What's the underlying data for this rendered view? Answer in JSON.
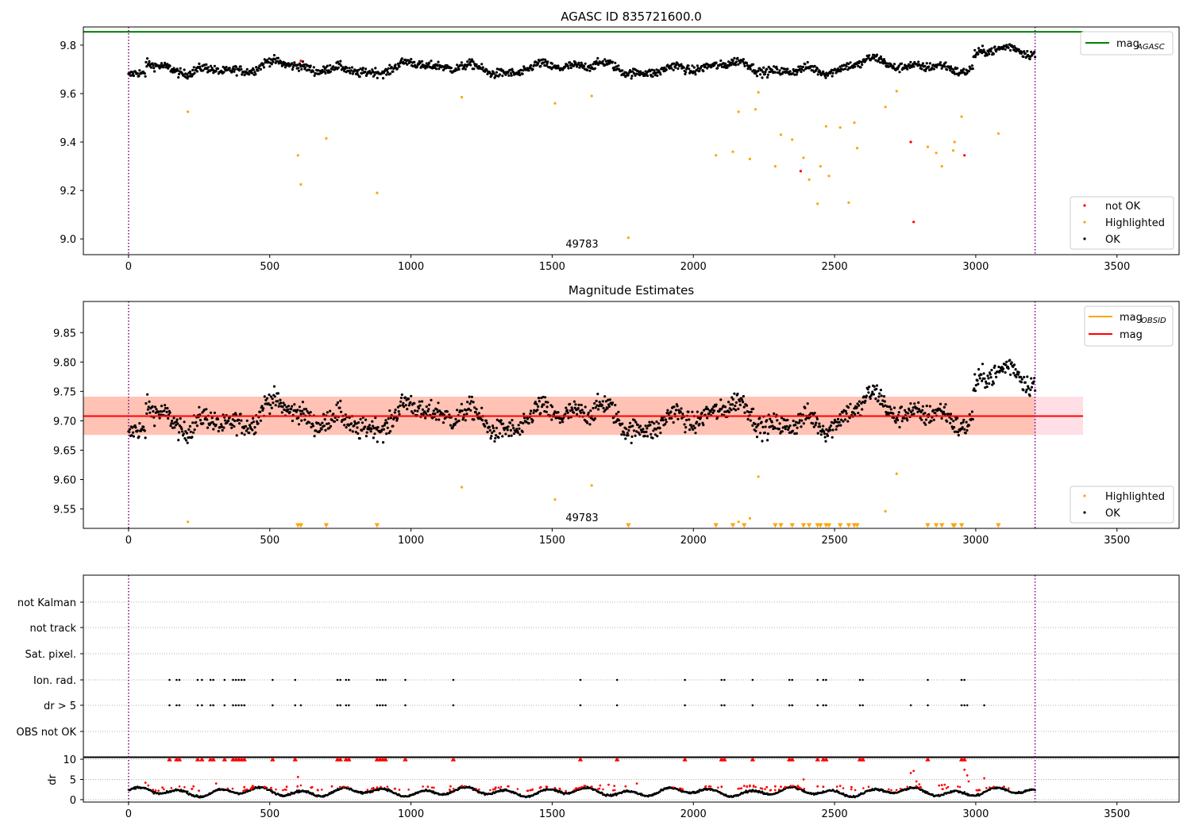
{
  "chart_data": [
    {
      "type": "scatter",
      "title": "AGASC ID 835721600.0",
      "xlim": [
        -160,
        3720
      ],
      "ylim": [
        8.935,
        9.875
      ],
      "x_ticks": [
        0,
        500,
        1000,
        1500,
        2000,
        2500,
        3000,
        3500
      ],
      "y_ticks": [
        9.0,
        9.2,
        9.4,
        9.6,
        9.8
      ],
      "y_tick_labels": [
        "9.0",
        "9.2",
        "9.4",
        "9.6",
        "9.8"
      ],
      "vlines": [
        0,
        3210
      ],
      "hline": {
        "name": "mag_AGASC",
        "y": 9.855,
        "x_range": [
          -160,
          3380
        ],
        "color": "#008000"
      },
      "annotation": {
        "text": "49783",
        "x": 1600,
        "y": 8.96
      },
      "legend": {
        "top_right": [
          {
            "name": "mag",
            "sub": "AGASC",
            "color": "#008000"
          }
        ],
        "bottom_right": [
          {
            "name": "not OK",
            "color": "#ff0000"
          },
          {
            "name": "Highlighted",
            "color": "#ffa500"
          },
          {
            "name": "OK",
            "color": "#000000"
          }
        ]
      },
      "series": [
        {
          "name": "not OK",
          "color": "#ff0000",
          "x": [
            610,
            2380,
            2770,
            2780,
            2960
          ],
          "y": [
            9.735,
            9.28,
            9.4,
            9.07,
            9.345
          ]
        },
        {
          "name": "Highlighted",
          "color": "#ffa500",
          "x": [
            210,
            600,
            610,
            700,
            880,
            1180,
            1510,
            1640,
            1770,
            2080,
            2140,
            2160,
            2200,
            2220,
            2230,
            2290,
            2310,
            2350,
            2390,
            2410,
            2440,
            2450,
            2470,
            2480,
            2520,
            2550,
            2570,
            2580,
            2680,
            2720,
            2830,
            2860,
            2880,
            2920,
            2925,
            2950,
            3080
          ],
          "y": [
            9.525,
            9.345,
            9.225,
            9.415,
            9.19,
            9.585,
            9.56,
            9.59,
            9.005,
            9.345,
            9.36,
            9.525,
            9.33,
            9.535,
            9.605,
            9.3,
            9.43,
            9.41,
            9.335,
            9.245,
            9.145,
            9.3,
            9.465,
            9.26,
            9.46,
            9.15,
            9.48,
            9.375,
            9.545,
            9.61,
            9.38,
            9.355,
            9.3,
            9.365,
            9.4,
            9.505,
            9.435
          ]
        },
        {
          "name": "OK",
          "color": "#000000",
          "generated": "lightcurve",
          "x_range": [
            0,
            3210
          ],
          "n": 1400,
          "y_offset": 0
        }
      ]
    },
    {
      "type": "scatter",
      "title": "Magnitude Estimates",
      "xlim": [
        -160,
        3720
      ],
      "ylim": [
        9.517,
        9.903
      ],
      "x_ticks": [
        0,
        500,
        1000,
        1500,
        2000,
        2500,
        3000,
        3500
      ],
      "y_ticks": [
        9.55,
        9.6,
        9.65,
        9.7,
        9.75,
        9.8,
        9.85
      ],
      "y_tick_labels": [
        "9.55",
        "9.60",
        "9.65",
        "9.70",
        "9.75",
        "9.80",
        "9.85"
      ],
      "vlines": [
        0,
        3210
      ],
      "mag_line": {
        "name": "mag",
        "y": 9.708,
        "x_range": [
          -160,
          3380
        ],
        "color": "#ff0000"
      },
      "band_pink": {
        "y_range": [
          9.676,
          9.741
        ],
        "x_range": [
          -160,
          3380
        ],
        "color": "#ffc0cb"
      },
      "band_orange": {
        "y_range": [
          9.676,
          9.741
        ],
        "x_range": [
          -160,
          3210
        ],
        "color": "#ffa07a"
      },
      "annotation": {
        "text": "49783",
        "x": 1600,
        "y": 9.528
      },
      "legend": {
        "top_right": [
          {
            "name": "mag",
            "sub": "OBSID",
            "color": "#ffa500"
          },
          {
            "name": "mag",
            "sub": "",
            "color": "#ff0000"
          }
        ],
        "bottom_right": [
          {
            "name": "Highlighted",
            "color": "#ffa500"
          },
          {
            "name": "OK",
            "color": "#000000"
          }
        ]
      },
      "series": [
        {
          "name": "Highlighted",
          "color": "#ffa500",
          "x": [
            210,
            1180,
            1510,
            1640,
            2160,
            2200,
            2230,
            2720,
            2680
          ],
          "y": [
            9.528,
            9.587,
            9.566,
            9.59,
            9.528,
            9.534,
            9.605,
            9.61,
            9.546
          ]
        },
        {
          "name": "Highlighted (below range)",
          "color": "#ffa500",
          "marker": "triangle-down",
          "x": [
            600,
            610,
            700,
            880,
            1770,
            2080,
            2140,
            2180,
            2290,
            2310,
            2350,
            2390,
            2410,
            2440,
            2450,
            2470,
            2480,
            2520,
            2550,
            2570,
            2580,
            2830,
            2860,
            2880,
            2920,
            2925,
            2950,
            3080
          ],
          "y_edge": 9.521
        },
        {
          "name": "OK",
          "color": "#000000",
          "generated": "lightcurve",
          "x_range": [
            0,
            3210
          ],
          "n": 1400,
          "y_offset": 0
        }
      ]
    },
    {
      "type": "flags",
      "xlim": [
        -160,
        3720
      ],
      "vlines": [
        0,
        3210
      ],
      "rows": [
        "not Kalman",
        "not track",
        "Sat. pixel.",
        "Ion. rad.",
        "dr > 5",
        "OBS not OK"
      ],
      "flag_points": {
        "Ion. rad.": [
          145,
          170,
          180,
          245,
          260,
          290,
          300,
          340,
          370,
          380,
          390,
          400,
          410,
          510,
          590,
          740,
          750,
          770,
          780,
          880,
          890,
          900,
          910,
          980,
          1150,
          1600,
          1730,
          1970,
          2100,
          2110,
          2210,
          2340,
          2350,
          2440,
          2460,
          2470,
          2590,
          2600,
          2830,
          2950,
          2960
        ],
        "dr > 5": [
          145,
          170,
          180,
          245,
          260,
          290,
          300,
          340,
          370,
          380,
          390,
          400,
          410,
          510,
          590,
          610,
          740,
          750,
          770,
          780,
          880,
          890,
          900,
          910,
          980,
          1150,
          1600,
          1730,
          1970,
          2100,
          2110,
          2210,
          2340,
          2350,
          2440,
          2460,
          2470,
          2590,
          2600,
          2770,
          2830,
          2950,
          2960,
          2970,
          3030
        ]
      }
    },
    {
      "type": "scatter",
      "ylabel": "dr",
      "xlim": [
        -160,
        3720
      ],
      "ylim": [
        -0.6,
        10.6
      ],
      "x_ticks": [
        0,
        500,
        1000,
        1500,
        2000,
        2500,
        3000,
        3500
      ],
      "y_ticks": [
        0,
        5,
        10
      ],
      "y_tick_labels": [
        "0",
        "5",
        "10"
      ],
      "vlines": [
        0,
        3210
      ],
      "capped_value": 10,
      "series": [
        {
          "name": "dr capped",
          "color": "#ff0000",
          "marker": "triangle-up",
          "x": [
            145,
            170,
            180,
            245,
            260,
            290,
            300,
            340,
            370,
            380,
            390,
            400,
            410,
            510,
            590,
            740,
            750,
            770,
            780,
            880,
            890,
            900,
            910,
            980,
            1150,
            1600,
            1730,
            1970,
            2100,
            2110,
            2210,
            2340,
            2350,
            2440,
            2460,
            2470,
            2590,
            2600,
            2830,
            2950,
            2960
          ]
        },
        {
          "name": "dr red",
          "color": "#ff0000",
          "x": [
            60,
            70,
            120,
            230,
            310,
            410,
            440,
            560,
            600,
            650,
            720,
            880,
            1060,
            1140,
            1180,
            1300,
            1460,
            1640,
            1670,
            1700,
            1720,
            1760,
            1800,
            2100,
            2180,
            2200,
            2260,
            2290,
            2310,
            2370,
            2390,
            2440,
            2460,
            2520,
            2560,
            2770,
            2780,
            2790,
            2800,
            2870,
            2880,
            2890,
            2960,
            2970,
            2975,
            3030,
            3100
          ],
          "y": [
            4.2,
            3.5,
            3.0,
            3.3,
            4.0,
            3.1,
            3.4,
            3.2,
            5.6,
            3.1,
            3.3,
            3.0,
            3.2,
            3.3,
            3.4,
            3.0,
            3.1,
            3.2,
            3.5,
            3.7,
            3.4,
            3.3,
            4.0,
            3.2,
            3.4,
            3.5,
            3.1,
            3.3,
            3.2,
            3.4,
            5.0,
            3.3,
            3.2,
            3.4,
            3.1,
            6.6,
            7.1,
            4.5,
            3.8,
            3.5,
            3.6,
            3.7,
            7.4,
            6.0,
            4.5,
            5.3,
            3.2
          ]
        },
        {
          "name": "dr",
          "color": "#000000",
          "generated": "dr",
          "x_range": [
            0,
            3210
          ],
          "n": 1400
        }
      ]
    }
  ]
}
